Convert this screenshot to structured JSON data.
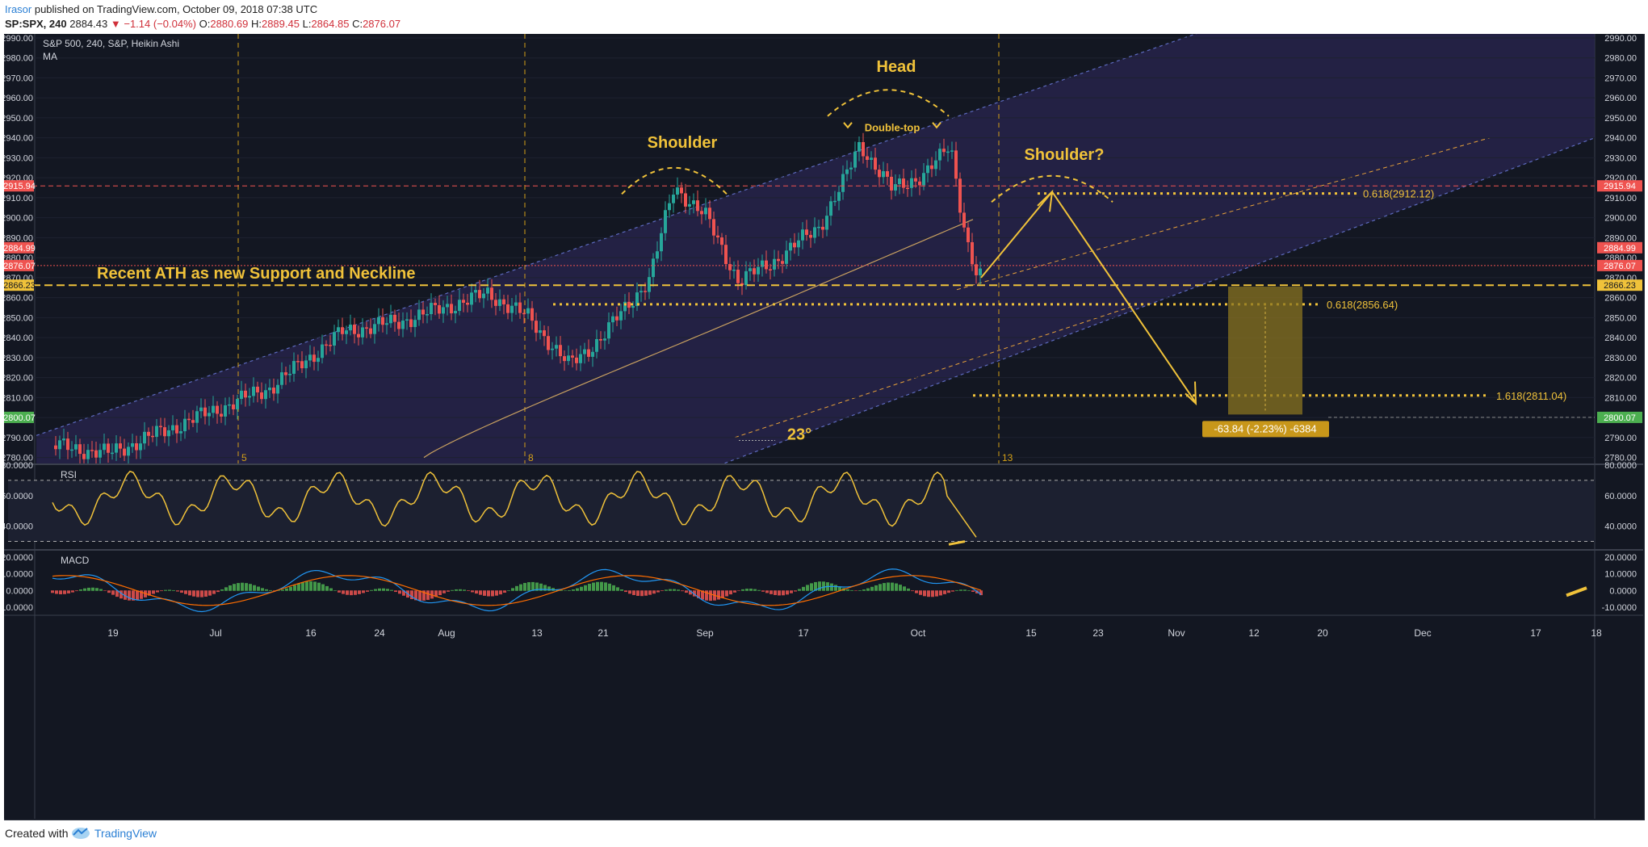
{
  "header": {
    "author": "Irasor",
    "published_text": " published on TradingView.com, October 09, 2018 07:38 UTC",
    "symbol": "SP:SPX, 240",
    "price": "2884.43",
    "down_arrow": "▼",
    "change": "−1.14 (−0.04%)",
    "o_label": "O:",
    "o_val": "2880.69",
    "h_label": "H:",
    "h_val": "2889.45",
    "l_label": "L:",
    "l_val": "2864.85",
    "c_label": "C:",
    "c_val": "2876.07"
  },
  "footer": {
    "created_with": "Created with",
    "brand": "TradingView"
  },
  "colors": {
    "background": "#131722",
    "bull": "#26a69a",
    "bear": "#ef5350",
    "annotation": "#f0c23a",
    "channel_fill": "#2a2550",
    "channel_line": "#5d6bbf",
    "rsi_line": "#f0c23a",
    "macd_line": "#2196f3",
    "signal_line": "#ff6d00"
  },
  "chart_data": {
    "type": "candlestick",
    "legend_title": "S&P 500, 240, S&P, Heikin Ashi",
    "legend_ma": "MA",
    "y_range": [
      2777,
      2992
    ],
    "y_ticks": [
      2780,
      2790,
      2800,
      2810,
      2820,
      2830,
      2840,
      2850,
      2860,
      2870,
      2880,
      2890,
      2900,
      2910,
      2920,
      2930,
      2940,
      2950,
      2960,
      2970,
      2980,
      2990
    ],
    "x_ticks": [
      "19",
      "Jul",
      "16",
      "24",
      "Aug",
      "13",
      "21",
      "Sep",
      "17",
      "Oct",
      "15",
      "23",
      "Nov",
      "12",
      "20",
      "Dec",
      "17",
      "18"
    ],
    "period_markers": [
      "5",
      "8",
      "13"
    ],
    "price_labels": [
      {
        "value": 2915.94,
        "text": "2915.94",
        "color": "#ef5350"
      },
      {
        "value": 2884.99,
        "text": "2884.99",
        "color": "#ef5350"
      },
      {
        "value": 2876.07,
        "text": "2876.07",
        "color": "#ef5350"
      },
      {
        "value": 2866.23,
        "text": "2866.23",
        "color": "#f0c23a"
      },
      {
        "value": 2800.07,
        "text": "2800.07",
        "color": "#4caf50"
      }
    ],
    "key_points": [
      {
        "label": "start",
        "value": 2786
      },
      {
        "label": "left_shoulder",
        "value": 2916
      },
      {
        "label": "neckline_test",
        "value": 2868
      },
      {
        "label": "head_double_top",
        "value": 2937
      },
      {
        "label": "recent_low",
        "value": 2864
      },
      {
        "label": "last_close",
        "value": 2876.07
      }
    ],
    "fib_levels": [
      {
        "label": "0.618(2912.12)",
        "value": 2912.12
      },
      {
        "label": "0.618(2856.64)",
        "value": 2856.64
      },
      {
        "label": "1.618(2811.04)",
        "value": 2811.04
      }
    ],
    "annotations": {
      "head": "Head",
      "shoulder": "Shoulder",
      "shoulder_q": "Shoulder?",
      "double_top": "Double-top",
      "neckline": "Recent ATH as new Support and Neckline",
      "angle": "23°",
      "measure": "-63.84 (-2.23%) -6384"
    },
    "rsi": {
      "title": "RSI",
      "range": [
        25,
        80
      ],
      "ticks": [
        {
          "value": 80,
          "label": "80.0000"
        },
        {
          "value": 60,
          "label": "60.0000"
        },
        {
          "value": 40,
          "label": "40.0000"
        }
      ],
      "levels": [
        70,
        30
      ]
    },
    "macd": {
      "title": "MACD",
      "range": [
        -14,
        24
      ],
      "ticks": [
        {
          "value": 20,
          "label": "20.0000"
        },
        {
          "value": 10,
          "label": "10.0000"
        },
        {
          "value": 0,
          "label": "0.0000"
        },
        {
          "value": -10,
          "label": "-10.0000"
        }
      ]
    }
  }
}
